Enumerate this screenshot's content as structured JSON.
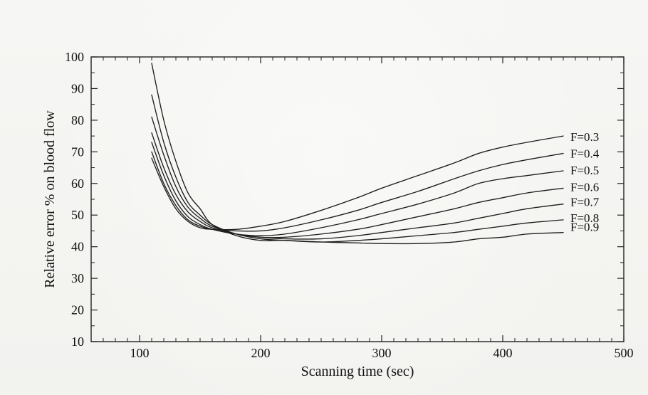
{
  "chart_data": {
    "type": "line",
    "title": "",
    "xlabel": "Scanning time (sec)",
    "ylabel": "Relative error % on blood flow",
    "xlim": [
      60,
      500
    ],
    "ylim": [
      10,
      100
    ],
    "xticks": [
      100,
      200,
      300,
      400,
      500
    ],
    "yticks": [
      10,
      20,
      30,
      40,
      50,
      60,
      70,
      80,
      90,
      100
    ],
    "grid": false,
    "series": [
      {
        "name": "F=0.9",
        "x": [
          110,
          120,
          130,
          140,
          150,
          160,
          180,
          200,
          220,
          250,
          280,
          300,
          330,
          360,
          380,
          400,
          420,
          450
        ],
        "y": [
          98,
          80,
          67,
          57,
          52,
          47,
          43.5,
          42,
          42,
          41.5,
          41.2,
          41,
          41,
          41.5,
          42.5,
          43,
          44,
          44.5
        ]
      },
      {
        "name": "F=0.8",
        "x": [
          110,
          120,
          130,
          140,
          150,
          160,
          180,
          200,
          220,
          250,
          280,
          300,
          330,
          360,
          380,
          400,
          420,
          450
        ],
        "y": [
          88,
          73,
          62,
          54,
          50,
          47,
          44,
          42.5,
          42,
          41.5,
          42,
          42.5,
          43.5,
          44.5,
          45.5,
          46.5,
          47.5,
          48.5
        ]
      },
      {
        "name": "F=0.7",
        "x": [
          110,
          120,
          130,
          140,
          150,
          160,
          180,
          200,
          220,
          250,
          280,
          300,
          330,
          360,
          380,
          400,
          420,
          450
        ],
        "y": [
          81,
          69,
          59,
          52.5,
          49,
          46.5,
          44,
          43,
          42.5,
          42.5,
          43.5,
          44.5,
          46,
          47.5,
          49,
          50.5,
          52,
          53.5
        ]
      },
      {
        "name": "F=0.6",
        "x": [
          110,
          120,
          130,
          140,
          150,
          160,
          180,
          200,
          220,
          250,
          280,
          300,
          330,
          360,
          380,
          400,
          420,
          450
        ],
        "y": [
          76,
          65,
          56.5,
          51,
          48,
          46,
          44,
          43,
          43,
          44,
          45.5,
          47,
          49.5,
          52,
          54,
          55.5,
          57,
          58.5
        ]
      },
      {
        "name": "F=0.5",
        "x": [
          110,
          120,
          130,
          140,
          150,
          160,
          180,
          200,
          220,
          250,
          280,
          300,
          330,
          360,
          380,
          400,
          420,
          450
        ],
        "y": [
          73,
          62.5,
          54.5,
          49.5,
          47,
          45.5,
          44,
          43.5,
          44,
          46,
          48.5,
          50.5,
          53.5,
          57,
          60,
          61.5,
          62.5,
          64
        ]
      },
      {
        "name": "F=0.4",
        "x": [
          110,
          120,
          130,
          140,
          150,
          160,
          180,
          200,
          220,
          250,
          280,
          300,
          330,
          360,
          380,
          400,
          420,
          450
        ],
        "y": [
          70,
          60,
          53,
          48.5,
          46.5,
          45.5,
          45,
          45,
          46,
          48.5,
          51.5,
          54,
          57.5,
          61.5,
          64,
          66,
          67.5,
          69.5
        ]
      },
      {
        "name": "F=0.3",
        "x": [
          110,
          120,
          130,
          140,
          150,
          160,
          180,
          200,
          220,
          250,
          280,
          300,
          330,
          360,
          380,
          400,
          420,
          450
        ],
        "y": [
          68,
          59,
          52,
          48,
          46,
          45.5,
          45.5,
          46.5,
          48,
          51.5,
          55.5,
          58.5,
          62.5,
          66.5,
          69.5,
          71.5,
          73,
          75
        ]
      }
    ]
  }
}
